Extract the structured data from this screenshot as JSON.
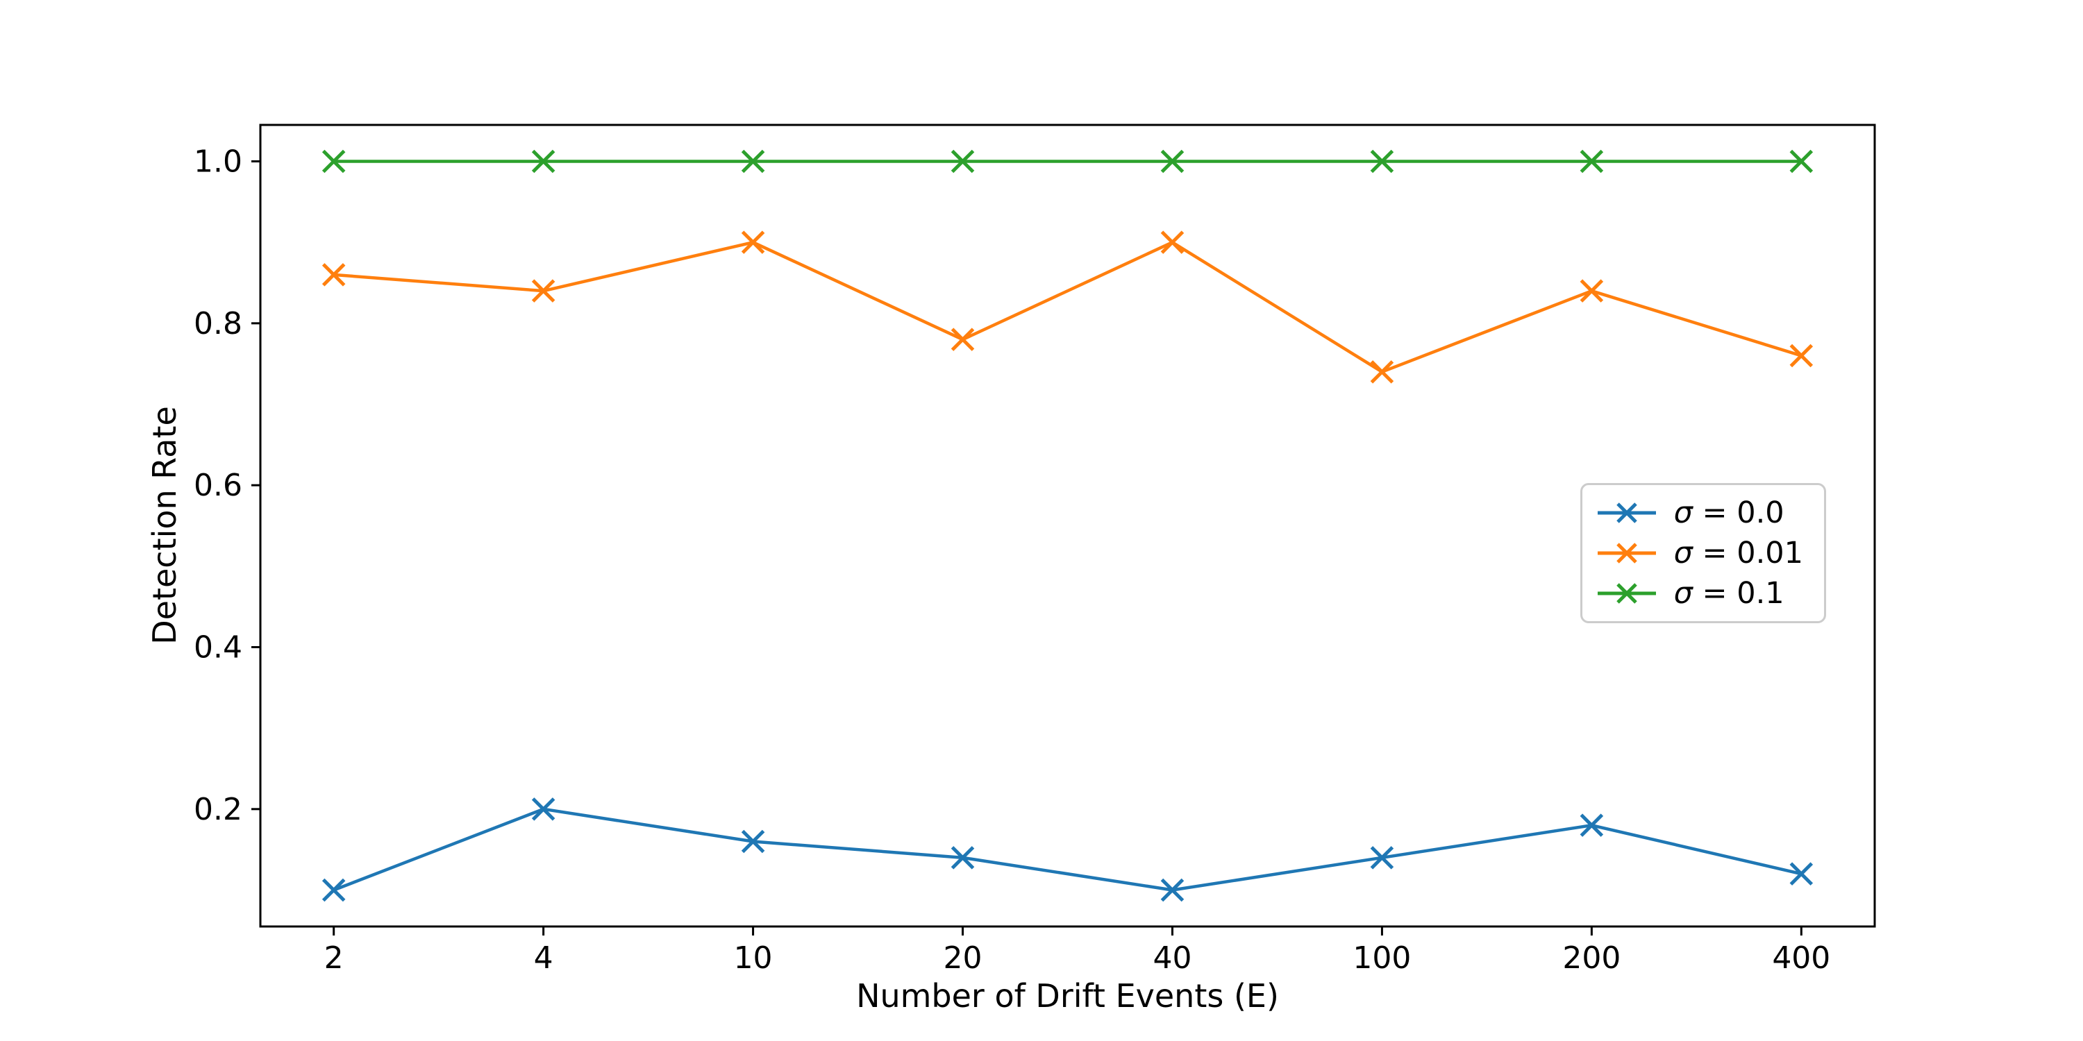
{
  "chart_data": {
    "type": "line",
    "title": "",
    "xlabel": "Number of Drift Events (E)",
    "ylabel": "Detection Rate",
    "categories": [
      "2",
      "4",
      "10",
      "20",
      "40",
      "100",
      "200",
      "400"
    ],
    "ytick_values": [
      0.2,
      0.4,
      0.6,
      0.8,
      1.0
    ],
    "ytick_labels": [
      "0.2",
      "0.4",
      "0.6",
      "0.8",
      "1.0"
    ],
    "ylim": [
      0.055,
      1.045
    ],
    "grid": false,
    "marker": "x",
    "legend_position": "center-right",
    "axis_color": "#000000",
    "legend_border_color": "#cccccc",
    "background_color": "#ffffff",
    "series": [
      {
        "name": "σ = 0.0",
        "color": "#1f77b4",
        "values": [
          0.1,
          0.2,
          0.16,
          0.14,
          0.1,
          0.14,
          0.18,
          0.12
        ]
      },
      {
        "name": "σ = 0.01",
        "color": "#ff7f0e",
        "values": [
          0.86,
          0.84,
          0.9,
          0.78,
          0.9,
          0.74,
          0.84,
          0.76
        ]
      },
      {
        "name": "σ = 0.1",
        "color": "#2ca02c",
        "values": [
          1.0,
          1.0,
          1.0,
          1.0,
          1.0,
          1.0,
          1.0,
          1.0
        ]
      }
    ]
  }
}
